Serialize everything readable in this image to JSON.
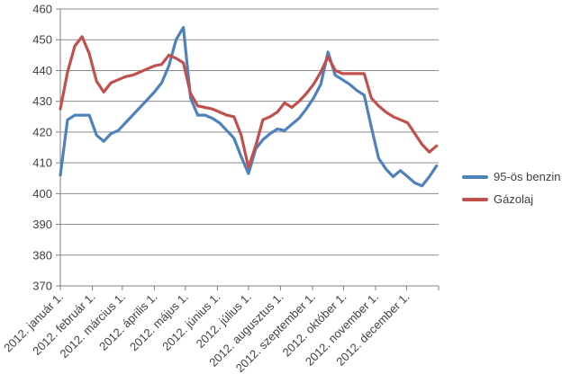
{
  "chart_data": {
    "type": "line",
    "title": "",
    "grid": true,
    "legend_position": "right",
    "x_axis": {
      "kind": "date",
      "year": 2012,
      "point_frequency": "weekly",
      "tick_labels": [
        "2012. január 1.",
        "2012. február 1.",
        "2012. március 1.",
        "2012. április 1.",
        "2012. május 1.",
        "2012. június 1.",
        "2012. július 1.",
        "2012. augusztus 1.",
        "2012. szeptember 1.",
        "2012. október 1.",
        "2012. november 1.",
        "2012. december 1."
      ]
    },
    "y_axis": {
      "min": 370,
      "max": 460,
      "step": 10,
      "tick_labels": [
        370,
        380,
        390,
        400,
        410,
        420,
        430,
        440,
        450,
        460
      ]
    },
    "series": [
      {
        "name": "95-ös benzin",
        "color": "#4F81BD",
        "values": [
          406,
          424,
          425.5,
          425.5,
          425.5,
          419,
          417,
          419.5,
          420.5,
          423,
          425.5,
          428,
          430.5,
          433,
          436,
          441.5,
          450,
          454,
          431,
          425.5,
          425.5,
          424.5,
          423,
          420.5,
          418,
          412,
          406.5,
          414.5,
          417.5,
          419.5,
          421,
          420.5,
          422.5,
          424.5,
          427.5,
          431,
          435.5,
          446,
          438.5,
          437,
          435.5,
          433.5,
          432,
          421.5,
          411.5,
          408,
          405.5,
          407.5,
          405.5,
          403.5,
          402.5,
          405.5,
          409
        ]
      },
      {
        "name": "Gázolaj",
        "color": "#C0504D",
        "values": [
          427.5,
          439.5,
          448,
          451,
          445.5,
          436.5,
          433,
          436,
          437,
          438,
          438.5,
          439.5,
          440.5,
          441.5,
          442,
          445,
          444,
          442.5,
          432.5,
          428.5,
          428,
          427.5,
          426.5,
          425.5,
          425,
          419,
          408.5,
          415.5,
          424,
          425,
          426.5,
          429.5,
          428,
          430,
          432.5,
          435.5,
          439.5,
          444.5,
          440,
          439,
          439,
          439,
          439,
          431,
          428.5,
          426.5,
          425,
          424,
          423,
          419.5,
          416,
          413.5,
          415.5
        ]
      }
    ]
  },
  "colors": {
    "background": "#FFFFFF",
    "gridline": "#8C8C8C",
    "axis": "#808080",
    "tick_text": "#404040",
    "benzin_line": "#4F81BD",
    "gazolaj_line": "#C0504D"
  }
}
